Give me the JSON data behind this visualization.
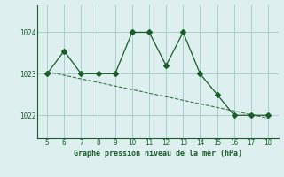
{
  "x": [
    5,
    6,
    7,
    8,
    9,
    10,
    11,
    12,
    13,
    14,
    15,
    16,
    17,
    18
  ],
  "y": [
    1023.0,
    1023.55,
    1023.0,
    1023.0,
    1023.0,
    1024.0,
    1024.0,
    1023.2,
    1024.0,
    1023.0,
    1022.5,
    1022.0,
    1022.0,
    1022.0
  ],
  "trend_x": [
    5,
    18
  ],
  "trend_y": [
    1023.05,
    1021.93
  ],
  "line_color": "#1a5c2a",
  "bg_color": "#ddf0ef",
  "grid_color": "#aacece",
  "xlabel": "Graphe pression niveau de la mer (hPa)",
  "yticks": [
    1022,
    1023,
    1024
  ],
  "xticks": [
    5,
    6,
    7,
    8,
    9,
    10,
    11,
    12,
    13,
    14,
    15,
    16,
    17,
    18
  ],
  "xlim": [
    4.4,
    18.6
  ],
  "ylim": [
    1021.45,
    1024.65
  ],
  "marker": "D",
  "marker_size": 3
}
